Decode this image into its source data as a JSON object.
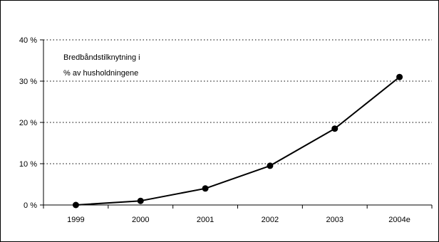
{
  "chart_data": {
    "type": "line",
    "title": "",
    "xlabel": "",
    "ylabel": "",
    "annotation_lines": [
      "Bredbåndstilknytning i",
      "% av husholdningene"
    ],
    "categories": [
      "1999",
      "2000",
      "2001",
      "2002",
      "2003",
      "2004e"
    ],
    "series": [
      {
        "values": [
          0,
          1,
          4,
          9.5,
          18.5,
          31
        ],
        "color": "#000000",
        "marker": "circle"
      }
    ],
    "ylim": [
      0,
      40
    ],
    "yticks": [
      0,
      10,
      20,
      30,
      40
    ],
    "ytick_labels": [
      "0 %",
      "10 %",
      "20 %",
      "30 %",
      "40 %"
    ],
    "grid": "horizontal-dotted",
    "legend": "none"
  }
}
